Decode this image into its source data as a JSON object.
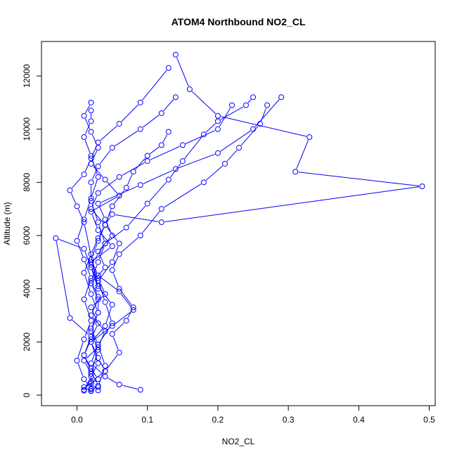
{
  "chart_data": {
    "type": "line",
    "title": "ATOM4 Northbound NO2_CL",
    "xlabel": "NO2_CL",
    "ylabel": "Altitude (m)",
    "xlim": [
      -0.05,
      0.5
    ],
    "ylim": [
      0,
      13000
    ],
    "x_ticks": [
      0.0,
      0.1,
      0.2,
      0.3,
      0.4,
      0.5
    ],
    "x_tick_labels": [
      "0.0",
      "0.1",
      "0.2",
      "0.3",
      "0.4",
      "0.5"
    ],
    "y_ticks": [
      0,
      2000,
      4000,
      6000,
      8000,
      10000,
      12000
    ],
    "y_tick_labels": [
      "0",
      "2000",
      "4000",
      "6000",
      "8000",
      "10000",
      "12000"
    ],
    "grid": false,
    "legend": "none",
    "color": "#0000ff",
    "marker": "open-circle",
    "series": [
      {
        "x": [
          0.02,
          0.01,
          0.03,
          0.02,
          0.01,
          0.02,
          0.03,
          0.02,
          0.04,
          0.03,
          0.02,
          0.05,
          0.03,
          0.02,
          0.06,
          0.04,
          0.02,
          0.03,
          0.02,
          0.01,
          0.02
        ],
        "y": [
          150,
          300,
          600,
          1000,
          1500,
          2100,
          2700,
          3300,
          3800,
          4400,
          5000,
          5600,
          6200,
          6900,
          7500,
          8100,
          8700,
          9300,
          9900,
          10500,
          11000
        ]
      },
      {
        "x": [
          0.01,
          0.02,
          0.04,
          0.03,
          0.02,
          0.05,
          0.08,
          0.06,
          0.03,
          0.02,
          0.03,
          0.04,
          0.02,
          0.03,
          0.06,
          0.1,
          0.15,
          0.2,
          0.22
        ],
        "y": [
          200,
          500,
          900,
          1400,
          2000,
          2600,
          3200,
          3900,
          4500,
          5100,
          5800,
          6400,
          7000,
          7600,
          8200,
          8800,
          9400,
          10000,
          10900
        ]
      },
      {
        "x": [
          0.03,
          0.02,
          0.02,
          0.01,
          0.03,
          0.04,
          0.02,
          0.03,
          0.02,
          0.04,
          0.03,
          0.05,
          0.04,
          0.03,
          0.09,
          0.14,
          0.2,
          0.25,
          0.29
        ],
        "y": [
          180,
          450,
          800,
          1300,
          1800,
          2400,
          3000,
          3600,
          4200,
          4800,
          5400,
          6000,
          6600,
          7200,
          7900,
          8500,
          9100,
          10000,
          11200
        ]
      },
      {
        "x": [
          0.09,
          0.06,
          0.04,
          0.02,
          0.03,
          0.02,
          0.03,
          0.02,
          0.01,
          0.02,
          0.03,
          0.04,
          0.05,
          0.12,
          0.49,
          0.31,
          0.33,
          0.2,
          0.16,
          0.14
        ],
        "y": [
          200,
          400,
          700,
          1200,
          1900,
          2500,
          3100,
          3800,
          4600,
          5300,
          5900,
          6400,
          6800,
          6500,
          7850,
          8400,
          9700,
          10500,
          11500,
          12800
        ]
      },
      {
        "x": [
          0.02,
          0.03,
          0.02,
          0.01,
          0.02,
          -0.01,
          -0.03,
          0.01,
          0.02,
          0.03,
          0.01,
          0.0,
          -0.01,
          0.01,
          0.02,
          0.03,
          0.06,
          0.09,
          0.13
        ],
        "y": [
          160,
          350,
          900,
          1500,
          2200,
          2900,
          5900,
          5500,
          4800,
          4000,
          6500,
          7100,
          7700,
          8300,
          8900,
          9500,
          10200,
          11000,
          12300
        ]
      },
      {
        "x": [
          0.04,
          0.06,
          0.05,
          0.07,
          0.08,
          0.06,
          0.05,
          0.06,
          0.09,
          0.12,
          0.18,
          0.21,
          0.23,
          0.26,
          0.27
        ],
        "y": [
          900,
          1600,
          2300,
          2800,
          3300,
          4000,
          4700,
          5300,
          6000,
          7000,
          8000,
          8700,
          9300,
          10200,
          10900
        ]
      },
      {
        "x": [
          0.01,
          0.02,
          0.03,
          0.02,
          0.04,
          0.05,
          0.03,
          0.02,
          0.04,
          0.07,
          0.1,
          0.13,
          0.15,
          0.18,
          0.2,
          0.24,
          0.25
        ],
        "y": [
          170,
          700,
          1200,
          2000,
          2600,
          3400,
          4100,
          4900,
          5700,
          6300,
          7200,
          8100,
          8800,
          9800,
          10300,
          10900,
          11200
        ]
      },
      {
        "x": [
          0.02,
          0.02,
          0.03,
          0.02,
          0.03,
          0.03,
          0.02,
          0.03,
          0.04,
          0.03,
          0.02,
          0.02,
          0.03,
          0.05,
          0.09,
          0.12,
          0.14
        ],
        "y": [
          220,
          800,
          1700,
          2400,
          3100,
          3700,
          4300,
          5000,
          5700,
          6500,
          7300,
          8000,
          8600,
          9300,
          10000,
          10600,
          11200
        ]
      },
      {
        "x": [
          0.02,
          0.01,
          0.0,
          0.01,
          0.02,
          0.01,
          0.02,
          0.01,
          0.0,
          0.01,
          0.02,
          0.03,
          0.02,
          0.01,
          0.02,
          0.02
        ],
        "y": [
          250,
          600,
          1300,
          2100,
          2800,
          3600,
          4400,
          5100,
          5800,
          6600,
          7400,
          8200,
          9000,
          9700,
          10300,
          10700
        ]
      },
      {
        "x": [
          0.03,
          0.04,
          0.03,
          0.05,
          0.04,
          0.03,
          0.05,
          0.06,
          0.04,
          0.05,
          0.07,
          0.08,
          0.1,
          0.12,
          0.13
        ],
        "y": [
          300,
          1100,
          1900,
          2700,
          3500,
          4300,
          5000,
          5700,
          6400,
          7100,
          7800,
          8400,
          9000,
          9400,
          9900
        ]
      }
    ]
  }
}
